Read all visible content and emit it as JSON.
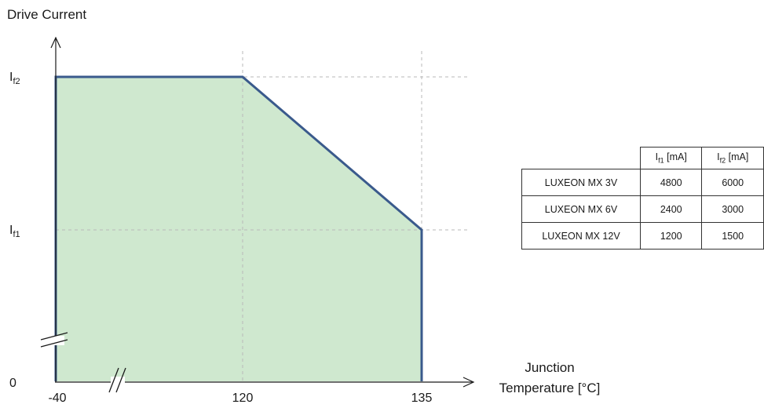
{
  "chart_data": {
    "type": "area",
    "title": "",
    "ylabel": "Drive Current",
    "xlabel_line1": "Junction",
    "xlabel_line2": "Temperature [°C]",
    "x_ticks": [
      "-40",
      "120",
      "135"
    ],
    "y_ticks": [
      {
        "main": "0",
        "sub": ""
      },
      {
        "main": "I",
        "sub": "f1"
      },
      {
        "main": "I",
        "sub": "f2"
      }
    ],
    "grid": "dashed",
    "axis_break": true,
    "x": [
      -40,
      120,
      135,
      135
    ],
    "y": [
      "If2",
      "If2",
      "If1",
      "0"
    ],
    "fill_color": "#cfe8cf",
    "line_color": "#3a5a8c"
  },
  "table": {
    "headers": [
      {
        "main": "I",
        "sub": "f1",
        "unit": " [mA]"
      },
      {
        "main": "I",
        "sub": "f2",
        "unit": " [mA]"
      }
    ],
    "rows": [
      {
        "name": "LUXEON MX 3V",
        "if1": "4800",
        "if2": "6000"
      },
      {
        "name": "LUXEON MX 6V",
        "if1": "2400",
        "if2": "3000"
      },
      {
        "name": "LUXEON MX 12V",
        "if1": "1200",
        "if2": "1500"
      }
    ]
  }
}
